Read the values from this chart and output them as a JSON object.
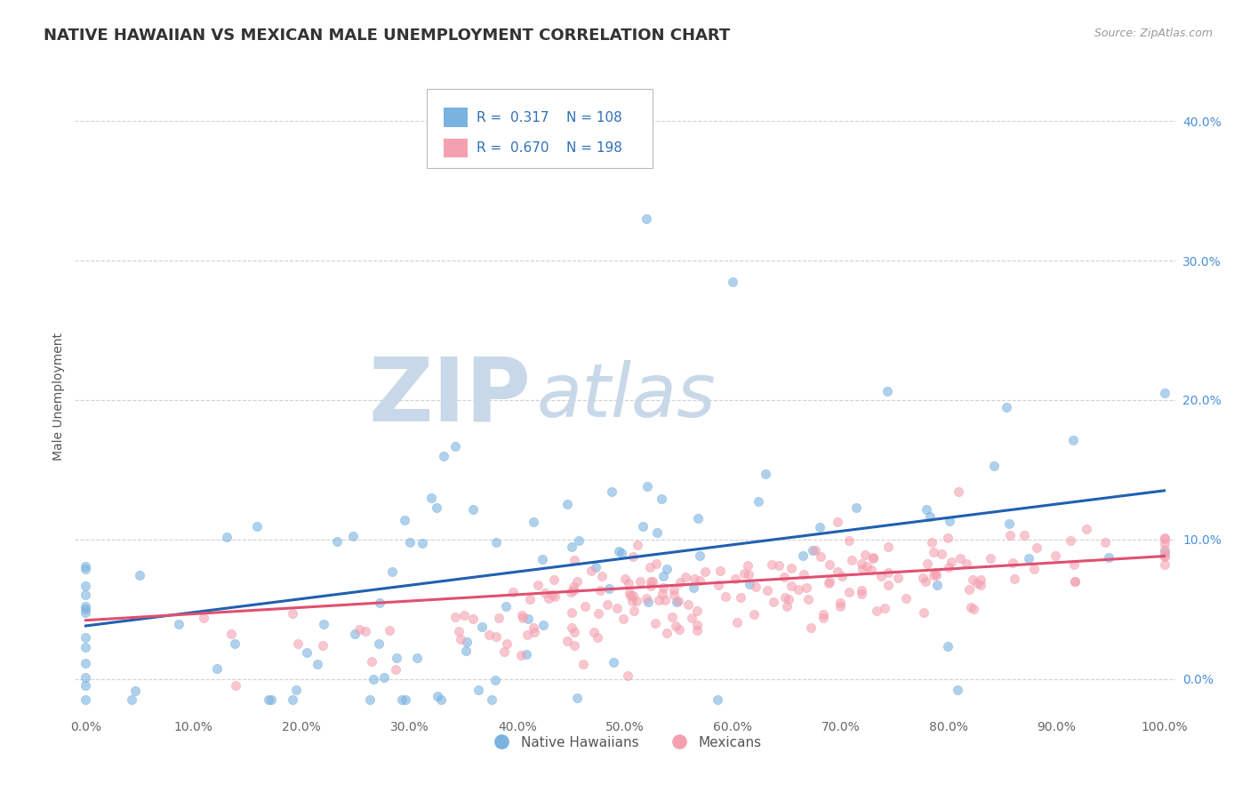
{
  "title": "NATIVE HAWAIIAN VS MEXICAN MALE UNEMPLOYMENT CORRELATION CHART",
  "source_text": "Source: ZipAtlas.com",
  "ylabel": "Male Unemployment",
  "legend_labels": [
    "Native Hawaiians",
    "Mexicans"
  ],
  "r_native": 0.317,
  "n_native": 108,
  "r_mexican": 0.67,
  "n_mexican": 198,
  "xlim": [
    -0.01,
    1.01
  ],
  "ylim": [
    -0.025,
    0.43
  ],
  "xtick_vals": [
    0.0,
    0.1,
    0.2,
    0.3,
    0.4,
    0.5,
    0.6,
    0.7,
    0.8,
    0.9,
    1.0
  ],
  "ytick_vals": [
    0.0,
    0.1,
    0.2,
    0.3,
    0.4
  ],
  "color_native": "#7ab3e0",
  "color_mexican": "#f4a0b0",
  "line_color_native": "#2060b0",
  "line_color_mexican": "#e05070",
  "scatter_alpha": 0.6,
  "scatter_size": 55,
  "watermark_zip": "ZIP",
  "watermark_atlas": "atlas",
  "watermark_color_zip": "#c8d8e8",
  "watermark_color_atlas": "#c8d8e8",
  "background_color": "#ffffff",
  "grid_color": "#cccccc",
  "title_fontsize": 13,
  "label_fontsize": 10,
  "tick_fontsize": 10
}
